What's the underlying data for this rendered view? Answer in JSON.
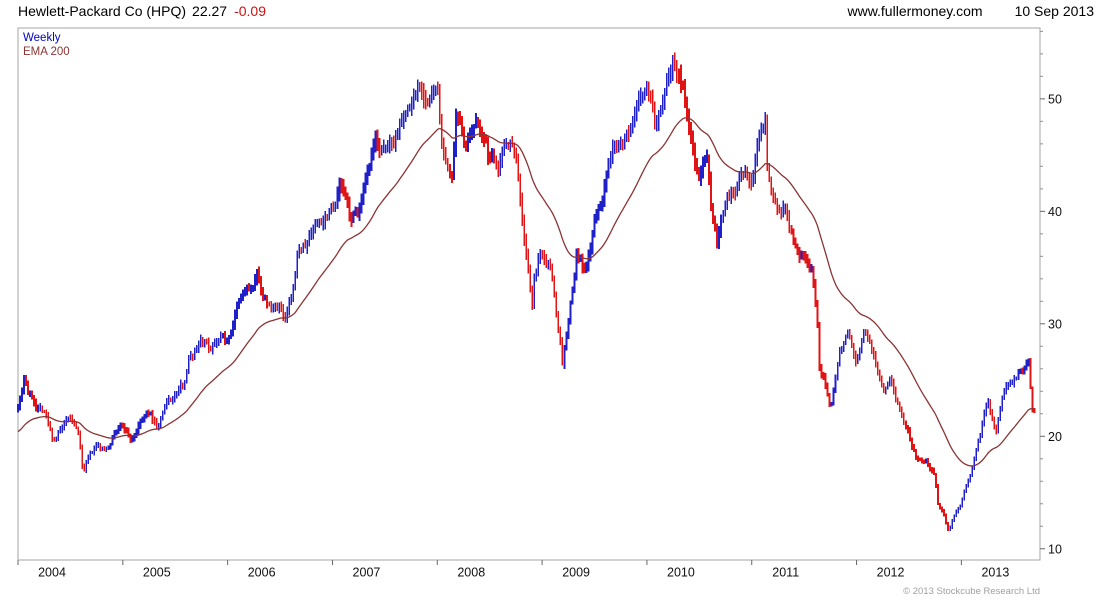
{
  "header": {
    "instrument": "Hewlett-Packard Co (HPQ)",
    "last": "22.27",
    "change": "-0.09",
    "site": "www.fullermoney.com",
    "date": "10 Sep 2013"
  },
  "legend": {
    "weekly": "Weekly",
    "ema": "EMA 200"
  },
  "footer": {
    "copyright": "© 2013 Stockcube Research Ltd"
  },
  "colors": {
    "up_bar": "#2020c8",
    "down_bar": "#e01414",
    "ema_line": "#8b3434",
    "change_text": "#cc1111",
    "legend_weekly": "#0000cc",
    "legend_ema": "#8b3434",
    "frame": "#a6a6a6",
    "tick": "#666666",
    "copyright": "#a0a0a0"
  },
  "chart_data": {
    "type": "candlestick",
    "title": "Hewlett-Packard Co (HPQ)",
    "symbol": "HPQ",
    "interval": "Weekly",
    "overlay": "EMA 200",
    "last_price": 22.27,
    "change": -0.09,
    "x_ticks": [
      "2004",
      "2005",
      "2006",
      "2007",
      "2008",
      "2009",
      "2010",
      "2011",
      "2012",
      "2013"
    ],
    "y_ticks": [
      10,
      20,
      30,
      40,
      50
    ],
    "y_minor_step": 2,
    "ylim": [
      9.0,
      56.3
    ],
    "xlim": [
      2004.0,
      2013.75
    ],
    "legend_position": "top-left",
    "grid": false,
    "ema_period": 200,
    "ema_period_weeks": 40,
    "ema_seed": 20.3,
    "anchors": [
      [
        2004.0,
        22.8
      ],
      [
        2004.04,
        24.5
      ],
      [
        2004.06,
        25.9
      ],
      [
        2004.09,
        24.4
      ],
      [
        2004.17,
        23.0
      ],
      [
        2004.25,
        22.6
      ],
      [
        2004.33,
        19.9
      ],
      [
        2004.42,
        20.7
      ],
      [
        2004.5,
        21.2
      ],
      [
        2004.58,
        19.8
      ],
      [
        2004.61,
        17.2
      ],
      [
        2004.63,
        16.7
      ],
      [
        2004.67,
        17.7
      ],
      [
        2004.75,
        18.8
      ],
      [
        2004.83,
        18.5
      ],
      [
        2004.92,
        20.4
      ],
      [
        2005.0,
        21.0
      ],
      [
        2005.08,
        19.7
      ],
      [
        2005.17,
        21.3
      ],
      [
        2005.25,
        22.0
      ],
      [
        2005.33,
        20.7
      ],
      [
        2005.42,
        22.8
      ],
      [
        2005.5,
        23.5
      ],
      [
        2005.58,
        24.6
      ],
      [
        2005.63,
        27.0
      ],
      [
        2005.67,
        27.5
      ],
      [
        2005.75,
        29.2
      ],
      [
        2005.83,
        28.0
      ],
      [
        2005.92,
        29.6
      ],
      [
        2006.0,
        28.7
      ],
      [
        2006.08,
        31.2
      ],
      [
        2006.17,
        32.7
      ],
      [
        2006.25,
        33.0
      ],
      [
        2006.29,
        34.2
      ],
      [
        2006.33,
        32.3
      ],
      [
        2006.42,
        30.9
      ],
      [
        2006.5,
        31.7
      ],
      [
        2006.54,
        29.8
      ],
      [
        2006.63,
        32.5
      ],
      [
        2006.67,
        36.2
      ],
      [
        2006.75,
        36.7
      ],
      [
        2006.83,
        38.7
      ],
      [
        2006.92,
        39.5
      ],
      [
        2007.0,
        41.2
      ],
      [
        2007.08,
        42.8
      ],
      [
        2007.17,
        39.3
      ],
      [
        2007.25,
        40.1
      ],
      [
        2007.33,
        42.1
      ],
      [
        2007.42,
        45.6
      ],
      [
        2007.5,
        44.6
      ],
      [
        2007.58,
        46.2
      ],
      [
        2007.67,
        49.2
      ],
      [
        2007.75,
        49.8
      ],
      [
        2007.83,
        51.6
      ],
      [
        2007.92,
        50.3
      ],
      [
        2008.0,
        50.5
      ],
      [
        2008.04,
        46.0
      ],
      [
        2008.08,
        43.8
      ],
      [
        2008.15,
        42.8
      ],
      [
        2008.17,
        47.6
      ],
      [
        2008.25,
        45.7
      ],
      [
        2008.33,
        46.4
      ],
      [
        2008.42,
        47.0
      ],
      [
        2008.5,
        44.2
      ],
      [
        2008.58,
        44.7
      ],
      [
        2008.67,
        46.9
      ],
      [
        2008.75,
        46.2
      ],
      [
        2008.79,
        42.0
      ],
      [
        2008.83,
        38.0
      ],
      [
        2008.88,
        34.5
      ],
      [
        2008.9,
        30.5
      ],
      [
        2008.92,
        34.0
      ],
      [
        2008.96,
        35.5
      ],
      [
        2009.0,
        36.3
      ],
      [
        2009.08,
        34.9
      ],
      [
        2009.17,
        28.9
      ],
      [
        2009.19,
        26.4
      ],
      [
        2009.25,
        30.0
      ],
      [
        2009.33,
        36.0
      ],
      [
        2009.42,
        34.4
      ],
      [
        2009.5,
        38.6
      ],
      [
        2009.58,
        41.3
      ],
      [
        2009.67,
        44.9
      ],
      [
        2009.75,
        47.2
      ],
      [
        2009.83,
        47.5
      ],
      [
        2009.92,
        49.1
      ],
      [
        2010.0,
        51.5
      ],
      [
        2010.04,
        50.0
      ],
      [
        2010.08,
        47.0
      ],
      [
        2010.17,
        50.8
      ],
      [
        2010.25,
        53.8
      ],
      [
        2010.33,
        52.0
      ],
      [
        2010.42,
        46.0
      ],
      [
        2010.5,
        43.3
      ],
      [
        2010.58,
        46.1
      ],
      [
        2010.6,
        42.0
      ],
      [
        2010.67,
        38.6
      ],
      [
        2010.75,
        42.1
      ],
      [
        2010.83,
        42.3
      ],
      [
        2010.92,
        43.3
      ],
      [
        2011.0,
        42.1
      ],
      [
        2011.08,
        46.8
      ],
      [
        2011.13,
        48.3
      ],
      [
        2011.15,
        43.5
      ],
      [
        2011.17,
        43.3
      ],
      [
        2011.25,
        41.0
      ],
      [
        2011.33,
        40.4
      ],
      [
        2011.42,
        37.1
      ],
      [
        2011.5,
        36.4
      ],
      [
        2011.58,
        35.1
      ],
      [
        2011.6,
        33.5
      ],
      [
        2011.63,
        30.0
      ],
      [
        2011.65,
        25.5
      ],
      [
        2011.67,
        26.0
      ],
      [
        2011.71,
        24.5
      ],
      [
        2011.75,
        22.6
      ],
      [
        2011.79,
        24.2
      ],
      [
        2011.83,
        27.0
      ],
      [
        2011.92,
        28.8
      ],
      [
        2011.96,
        27.0
      ],
      [
        2012.0,
        26.2
      ],
      [
        2012.08,
        28.9
      ],
      [
        2012.17,
        26.0
      ],
      [
        2012.25,
        23.8
      ],
      [
        2012.33,
        24.8
      ],
      [
        2012.42,
        22.7
      ],
      [
        2012.5,
        20.1
      ],
      [
        2012.58,
        18.2
      ],
      [
        2012.67,
        17.6
      ],
      [
        2012.75,
        17.1
      ],
      [
        2012.77,
        14.7
      ],
      [
        2012.83,
        13.7
      ],
      [
        2012.88,
        11.9
      ],
      [
        2012.92,
        12.9
      ],
      [
        2013.0,
        14.3
      ],
      [
        2013.08,
        16.4
      ],
      [
        2013.17,
        19.8
      ],
      [
        2013.25,
        23.8
      ],
      [
        2013.33,
        20.5
      ],
      [
        2013.42,
        24.3
      ],
      [
        2013.5,
        24.8
      ],
      [
        2013.58,
        25.8
      ],
      [
        2013.63,
        27.0
      ],
      [
        2013.65,
        26.2
      ],
      [
        2013.67,
        22.4
      ],
      [
        2013.69,
        22.27
      ]
    ]
  }
}
